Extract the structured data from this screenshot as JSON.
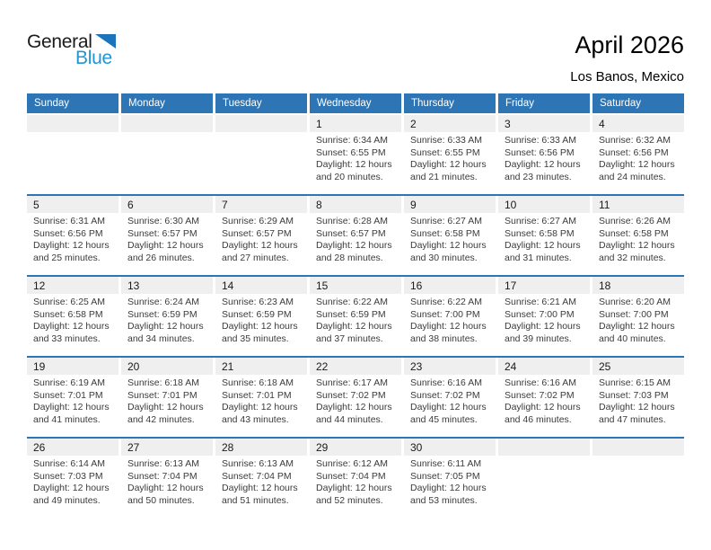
{
  "logo": {
    "general": "General",
    "blue": "Blue"
  },
  "header": {
    "title": "April 2026",
    "subtitle": "Los Banos, Mexico"
  },
  "colors": {
    "header_blue": "#2e75b6",
    "week_rule_blue": "#2e75b6",
    "day_band_gray": "#efefef",
    "logo_triangle_blue": "#1c75bc",
    "logo_text_blue": "#2196d4",
    "body_text": "#3b3b3b"
  },
  "labels": {
    "sunrise": "Sunrise:",
    "sunset": "Sunset:",
    "daylight": "Daylight:"
  },
  "weekdays": [
    "Sunday",
    "Monday",
    "Tuesday",
    "Wednesday",
    "Thursday",
    "Friday",
    "Saturday"
  ],
  "weeks": [
    [
      {
        "day": ""
      },
      {
        "day": ""
      },
      {
        "day": ""
      },
      {
        "day": "1",
        "sunrise": "6:34 AM",
        "sunset": "6:55 PM",
        "daylight": "12 hours and 20 minutes."
      },
      {
        "day": "2",
        "sunrise": "6:33 AM",
        "sunset": "6:55 PM",
        "daylight": "12 hours and 21 minutes."
      },
      {
        "day": "3",
        "sunrise": "6:33 AM",
        "sunset": "6:56 PM",
        "daylight": "12 hours and 23 minutes."
      },
      {
        "day": "4",
        "sunrise": "6:32 AM",
        "sunset": "6:56 PM",
        "daylight": "12 hours and 24 minutes."
      }
    ],
    [
      {
        "day": "5",
        "sunrise": "6:31 AM",
        "sunset": "6:56 PM",
        "daylight": "12 hours and 25 minutes."
      },
      {
        "day": "6",
        "sunrise": "6:30 AM",
        "sunset": "6:57 PM",
        "daylight": "12 hours and 26 minutes."
      },
      {
        "day": "7",
        "sunrise": "6:29 AM",
        "sunset": "6:57 PM",
        "daylight": "12 hours and 27 minutes."
      },
      {
        "day": "8",
        "sunrise": "6:28 AM",
        "sunset": "6:57 PM",
        "daylight": "12 hours and 28 minutes."
      },
      {
        "day": "9",
        "sunrise": "6:27 AM",
        "sunset": "6:58 PM",
        "daylight": "12 hours and 30 minutes."
      },
      {
        "day": "10",
        "sunrise": "6:27 AM",
        "sunset": "6:58 PM",
        "daylight": "12 hours and 31 minutes."
      },
      {
        "day": "11",
        "sunrise": "6:26 AM",
        "sunset": "6:58 PM",
        "daylight": "12 hours and 32 minutes."
      }
    ],
    [
      {
        "day": "12",
        "sunrise": "6:25 AM",
        "sunset": "6:58 PM",
        "daylight": "12 hours and 33 minutes."
      },
      {
        "day": "13",
        "sunrise": "6:24 AM",
        "sunset": "6:59 PM",
        "daylight": "12 hours and 34 minutes."
      },
      {
        "day": "14",
        "sunrise": "6:23 AM",
        "sunset": "6:59 PM",
        "daylight": "12 hours and 35 minutes."
      },
      {
        "day": "15",
        "sunrise": "6:22 AM",
        "sunset": "6:59 PM",
        "daylight": "12 hours and 37 minutes."
      },
      {
        "day": "16",
        "sunrise": "6:22 AM",
        "sunset": "7:00 PM",
        "daylight": "12 hours and 38 minutes."
      },
      {
        "day": "17",
        "sunrise": "6:21 AM",
        "sunset": "7:00 PM",
        "daylight": "12 hours and 39 minutes."
      },
      {
        "day": "18",
        "sunrise": "6:20 AM",
        "sunset": "7:00 PM",
        "daylight": "12 hours and 40 minutes."
      }
    ],
    [
      {
        "day": "19",
        "sunrise": "6:19 AM",
        "sunset": "7:01 PM",
        "daylight": "12 hours and 41 minutes."
      },
      {
        "day": "20",
        "sunrise": "6:18 AM",
        "sunset": "7:01 PM",
        "daylight": "12 hours and 42 minutes."
      },
      {
        "day": "21",
        "sunrise": "6:18 AM",
        "sunset": "7:01 PM",
        "daylight": "12 hours and 43 minutes."
      },
      {
        "day": "22",
        "sunrise": "6:17 AM",
        "sunset": "7:02 PM",
        "daylight": "12 hours and 44 minutes."
      },
      {
        "day": "23",
        "sunrise": "6:16 AM",
        "sunset": "7:02 PM",
        "daylight": "12 hours and 45 minutes."
      },
      {
        "day": "24",
        "sunrise": "6:16 AM",
        "sunset": "7:02 PM",
        "daylight": "12 hours and 46 minutes."
      },
      {
        "day": "25",
        "sunrise": "6:15 AM",
        "sunset": "7:03 PM",
        "daylight": "12 hours and 47 minutes."
      }
    ],
    [
      {
        "day": "26",
        "sunrise": "6:14 AM",
        "sunset": "7:03 PM",
        "daylight": "12 hours and 49 minutes."
      },
      {
        "day": "27",
        "sunrise": "6:13 AM",
        "sunset": "7:04 PM",
        "daylight": "12 hours and 50 minutes."
      },
      {
        "day": "28",
        "sunrise": "6:13 AM",
        "sunset": "7:04 PM",
        "daylight": "12 hours and 51 minutes."
      },
      {
        "day": "29",
        "sunrise": "6:12 AM",
        "sunset": "7:04 PM",
        "daylight": "12 hours and 52 minutes."
      },
      {
        "day": "30",
        "sunrise": "6:11 AM",
        "sunset": "7:05 PM",
        "daylight": "12 hours and 53 minutes."
      },
      {
        "day": ""
      },
      {
        "day": ""
      }
    ]
  ]
}
